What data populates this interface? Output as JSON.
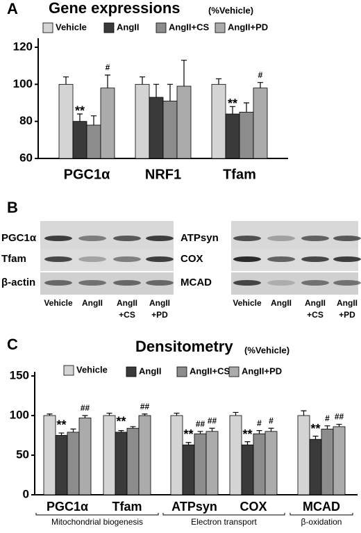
{
  "chart_data": [
    {
      "type": "bar",
      "panel_label": "A",
      "title": "Gene expressions",
      "subtitle": "(%Vehicle)",
      "categories": [
        "PGC1α",
        "NRF1",
        "Tfam"
      ],
      "series": [
        {
          "name": "Vehicle",
          "color": "#d4d4d4",
          "values": [
            100,
            100,
            100
          ],
          "errors": [
            4,
            4,
            3
          ],
          "marks": [
            null,
            null,
            null
          ]
        },
        {
          "name": "AngII",
          "color": "#3a3a3a",
          "values": [
            80,
            93,
            84
          ],
          "errors": [
            4,
            7,
            4
          ],
          "marks": [
            "**",
            null,
            "**"
          ]
        },
        {
          "name": "AngII+CS",
          "color": "#8c8c8c",
          "values": [
            78,
            91,
            85
          ],
          "errors": [
            5,
            9,
            5
          ],
          "marks": [
            null,
            null,
            null
          ]
        },
        {
          "name": "AngII+PD",
          "color": "#ababab",
          "values": [
            98,
            99,
            98
          ],
          "errors": [
            7,
            14,
            3
          ],
          "marks": [
            "#",
            null,
            "#"
          ]
        }
      ],
      "ylim": [
        60,
        120
      ],
      "yticks": [
        60,
        80,
        100,
        120
      ]
    },
    {
      "type": "bar",
      "panel_label": "C",
      "title": "Densitometry",
      "subtitle": "(%Vehicle)",
      "categories": [
        "PGC1α",
        "Tfam",
        "ATPsyn",
        "COX",
        "MCAD"
      ],
      "category_groups": [
        {
          "label": "Mitochondrial biogenesis",
          "categories": [
            "PGC1α",
            "Tfam"
          ]
        },
        {
          "label": "Electron transport",
          "categories": [
            "ATPsyn",
            "COX"
          ]
        },
        {
          "label": "β-oxidation",
          "categories": [
            "MCAD"
          ]
        }
      ],
      "series": [
        {
          "name": "Vehicle",
          "color": "#d4d4d4",
          "values": [
            100,
            100,
            100,
            100,
            100
          ],
          "errors": [
            2,
            3,
            3,
            4,
            6
          ],
          "marks": [
            null,
            null,
            null,
            null,
            null
          ]
        },
        {
          "name": "AngII",
          "color": "#3a3a3a",
          "values": [
            75,
            79,
            63,
            63,
            70
          ],
          "errors": [
            3,
            2,
            3,
            4,
            4
          ],
          "marks": [
            "**",
            "**",
            "**",
            "**",
            "**"
          ]
        },
        {
          "name": "AngII+CS",
          "color": "#8c8c8c",
          "values": [
            79,
            84,
            77,
            77,
            83
          ],
          "errors": [
            4,
            2,
            3,
            4,
            4
          ],
          "marks": [
            null,
            null,
            "##",
            "#",
            "#"
          ]
        },
        {
          "name": "AngII+PD",
          "color": "#ababab",
          "values": [
            97,
            100,
            80,
            80,
            86
          ],
          "errors": [
            3,
            2,
            4,
            4,
            3
          ],
          "marks": [
            "##",
            "##",
            "##",
            "#",
            "##"
          ]
        }
      ],
      "ylim": [
        0,
        150
      ],
      "yticks": [
        0,
        50,
        100,
        150
      ]
    }
  ],
  "blot": {
    "panel_label": "B",
    "left": {
      "rows": [
        "PGC1α",
        "Tfam",
        "β-actin"
      ],
      "lanes": [
        [
          "Vehicle"
        ],
        [
          "AngII"
        ],
        [
          "AngII",
          "+CS"
        ],
        [
          "AngII",
          "+PD"
        ]
      ]
    },
    "right": {
      "rows": [
        "ATPsyn",
        "COX",
        "MCAD"
      ],
      "lanes": [
        [
          "Vehicle"
        ],
        [
          "AngII"
        ],
        [
          "AngII",
          "+CS"
        ],
        [
          "AngII",
          "+PD"
        ]
      ]
    }
  }
}
